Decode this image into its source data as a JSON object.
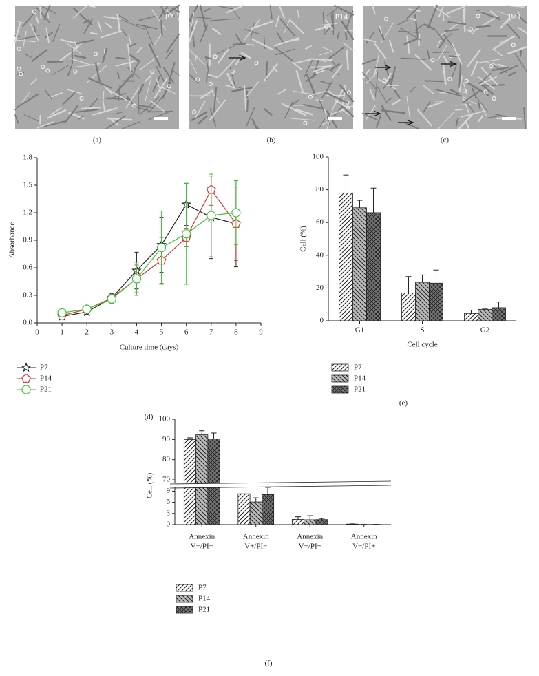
{
  "panels": [
    {
      "label": "P7",
      "caption": "(a)"
    },
    {
      "label": "P14",
      "caption": "(b)"
    },
    {
      "label": "P21",
      "caption": "(c)"
    }
  ],
  "chart_data": [
    {
      "type": "line",
      "caption": "(d)",
      "x_label": "Culture time (days)",
      "y_label": "Absorbance",
      "x": [
        1,
        2,
        3,
        4,
        5,
        6,
        7,
        8
      ],
      "xlim": [
        0,
        9
      ],
      "xticks": [
        0,
        1,
        2,
        3,
        4,
        5,
        6,
        7,
        8,
        9
      ],
      "ylim": [
        0,
        1.8
      ],
      "yticks": [
        {
          "value": 0,
          "label": "0.0"
        },
        0.3,
        0.6,
        0.9,
        1.2,
        1.5,
        1.8
      ],
      "series": [
        {
          "name": "P7",
          "color": "#222222",
          "marker": "star",
          "values": [
            0.07,
            0.12,
            0.27,
            0.57,
            0.85,
            1.29,
            1.15,
            1.08
          ],
          "errors": [
            0.02,
            0.02,
            0.05,
            0.2,
            0.3,
            0.23,
            0.45,
            0.47
          ]
        },
        {
          "name": "P14",
          "color": "#e03030",
          "marker": "pentagon",
          "values": [
            0.08,
            0.15,
            0.27,
            0.48,
            0.68,
            0.93,
            1.45,
            1.08
          ],
          "errors": [
            0.02,
            0.02,
            0.04,
            0.15,
            0.25,
            0.1,
            0.17,
            0.4
          ]
        },
        {
          "name": "P21",
          "color": "#33cc33",
          "marker": "circle",
          "values": [
            0.11,
            0.15,
            0.26,
            0.48,
            0.82,
            0.97,
            1.17,
            1.2
          ],
          "errors": [
            0.02,
            0.02,
            0.05,
            0.18,
            0.4,
            0.55,
            0.45,
            0.35
          ]
        }
      ]
    },
    {
      "type": "bar",
      "caption": "(e)",
      "x_label": "Cell cycle",
      "y_label": "Cell (%)",
      "categories": [
        "G1",
        "S",
        "G2"
      ],
      "ylim": [
        0,
        100
      ],
      "yticks": [
        0,
        20,
        40,
        60,
        80,
        100
      ],
      "series": [
        {
          "name": "P7",
          "color": "#ffffff",
          "values": [
            78,
            17,
            4.5
          ],
          "errors": [
            11,
            10,
            2
          ]
        },
        {
          "name": "P14",
          "color": "#bbbbbb",
          "values": [
            69,
            23.5,
            7
          ],
          "errors": [
            4.5,
            4.5,
            0.5
          ]
        },
        {
          "name": "P21",
          "color": "#777777",
          "values": [
            66,
            23,
            8
          ],
          "errors": [
            15,
            8,
            3.5
          ]
        }
      ]
    },
    {
      "type": "broken_bar",
      "caption": "(f)",
      "y_label": "Cell (%)",
      "categories": [
        [
          "Annexin",
          "V−/PI−"
        ],
        [
          "Annexin",
          "V+/PI−"
        ],
        [
          "Annexin",
          "V+/PI+"
        ],
        [
          "Annexin",
          "V−/PI+"
        ]
      ],
      "ylim": [
        0,
        100
      ],
      "ybreak": [
        10,
        69
      ],
      "yticks": [
        0,
        3,
        6,
        9,
        70,
        80,
        90,
        100
      ],
      "series": [
        {
          "name": "P7",
          "color": "#ffffff",
          "values": [
            90,
            8.3,
            1.4,
            0.15
          ],
          "errors": [
            0.8,
            0.5,
            0.7,
            0.05
          ]
        },
        {
          "name": "P14",
          "color": "#bbbbbb",
          "values": [
            92.3,
            6.1,
            1.3,
            0.05
          ],
          "errors": [
            2,
            1.1,
            1.1,
            0.02
          ]
        },
        {
          "name": "P21",
          "color": "#777777",
          "values": [
            90.3,
            8.1,
            1.35,
            0.05
          ],
          "errors": [
            2.9,
            2.4,
            0.3,
            0.02
          ]
        }
      ]
    }
  ]
}
